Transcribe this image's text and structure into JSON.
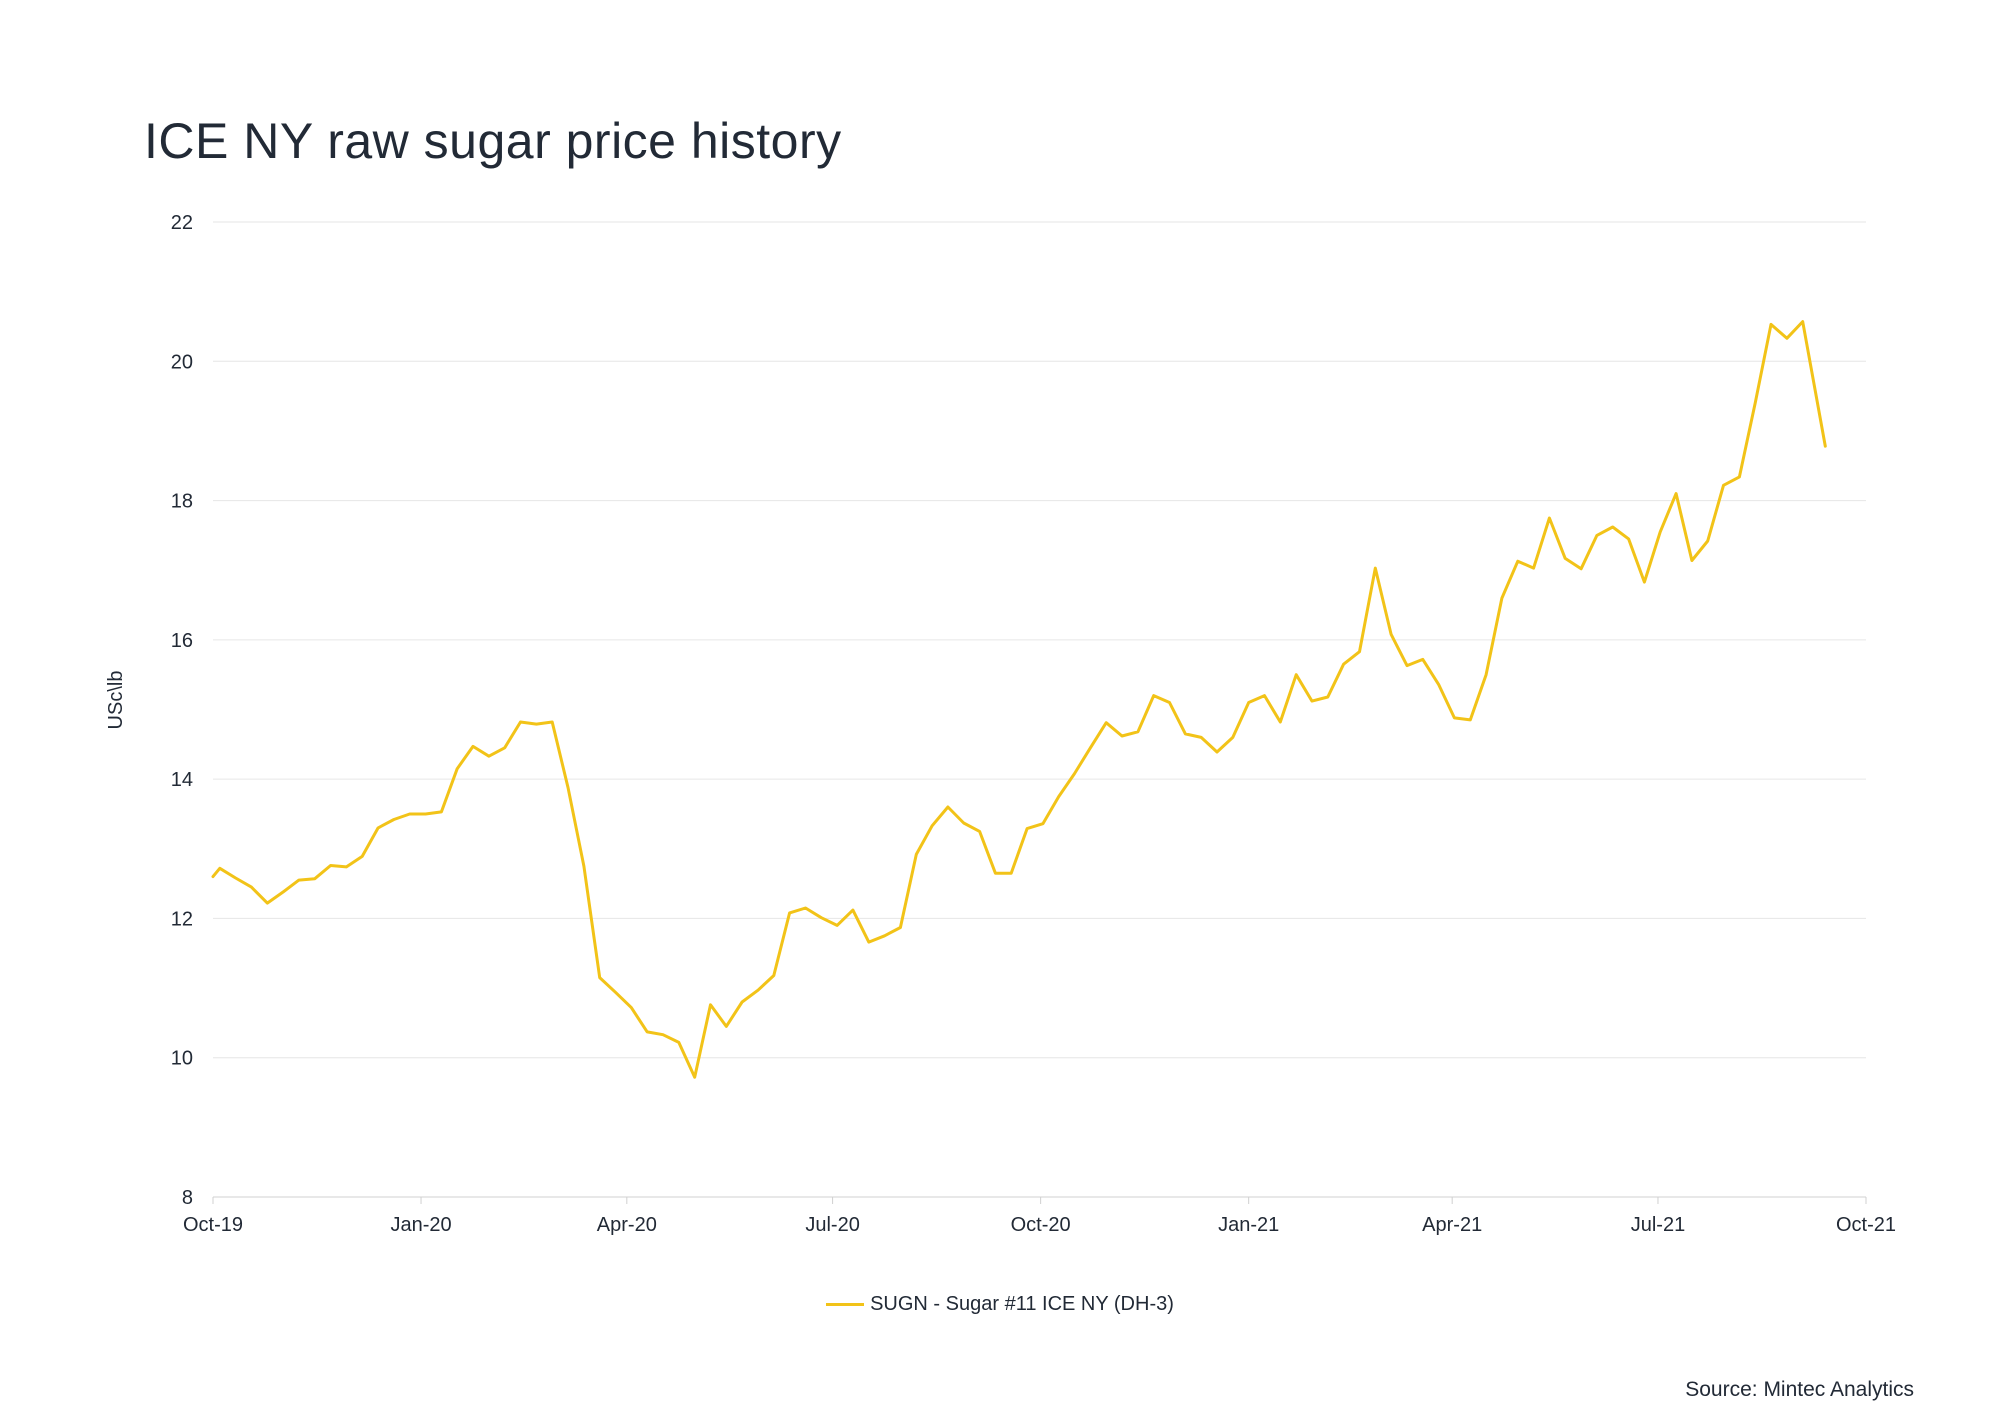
{
  "colors": {
    "series": "#f2c318",
    "grid": "#e6e6e6",
    "text": "#222a36",
    "axis": "#d0d0d0"
  },
  "source_label": "Source: Mintec Analytics",
  "chart_data": {
    "type": "line",
    "title": "ICE NY raw sugar price history",
    "xlabel": "",
    "ylabel": "USc\\lb",
    "ylim": [
      8,
      22
    ],
    "yticks": [
      8,
      10,
      12,
      14,
      16,
      18,
      20,
      22
    ],
    "xlim": [
      "2019-10-01",
      "2021-10-01"
    ],
    "xticks": [
      {
        "date": "2019-10-01",
        "label": "Oct-19"
      },
      {
        "date": "2020-01-01",
        "label": "Jan-20"
      },
      {
        "date": "2020-04-01",
        "label": "Apr-20"
      },
      {
        "date": "2020-07-01",
        "label": "Jul-20"
      },
      {
        "date": "2020-10-01",
        "label": "Oct-20"
      },
      {
        "date": "2021-01-01",
        "label": "Jan-21"
      },
      {
        "date": "2021-04-01",
        "label": "Apr-21"
      },
      {
        "date": "2021-07-01",
        "label": "Jul-21"
      },
      {
        "date": "2021-10-01",
        "label": "Oct-21"
      }
    ],
    "grid": true,
    "legend_position": "bottom-center",
    "series": [
      {
        "name": "SUGN - Sugar #11 ICE  NY (DH-3)",
        "color": "#f2c318",
        "points": [
          [
            "2019-10-01",
            12.6
          ],
          [
            "2019-10-04",
            12.72
          ],
          [
            "2019-10-11",
            12.58
          ],
          [
            "2019-10-18",
            12.45
          ],
          [
            "2019-10-25",
            12.22
          ],
          [
            "2019-11-01",
            12.38
          ],
          [
            "2019-11-08",
            12.55
          ],
          [
            "2019-11-15",
            12.57
          ],
          [
            "2019-11-22",
            12.76
          ],
          [
            "2019-11-29",
            12.74
          ],
          [
            "2019-12-06",
            12.89
          ],
          [
            "2019-12-13",
            13.3
          ],
          [
            "2019-12-20",
            13.42
          ],
          [
            "2019-12-27",
            13.5
          ],
          [
            "2020-01-03",
            13.5
          ],
          [
            "2020-01-10",
            13.53
          ],
          [
            "2020-01-17",
            14.15
          ],
          [
            "2020-01-24",
            14.47
          ],
          [
            "2020-01-31",
            14.33
          ],
          [
            "2020-02-07",
            14.45
          ],
          [
            "2020-02-14",
            14.82
          ],
          [
            "2020-02-21",
            14.79
          ],
          [
            "2020-02-28",
            14.82
          ],
          [
            "2020-03-06",
            13.88
          ],
          [
            "2020-03-13",
            12.75
          ],
          [
            "2020-03-20",
            11.15
          ],
          [
            "2020-03-27",
            10.94
          ],
          [
            "2020-04-03",
            10.72
          ],
          [
            "2020-04-10",
            10.37
          ],
          [
            "2020-04-17",
            10.33
          ],
          [
            "2020-04-24",
            10.22
          ],
          [
            "2020-05-01",
            9.72
          ],
          [
            "2020-05-08",
            10.76
          ],
          [
            "2020-05-15",
            10.45
          ],
          [
            "2020-05-22",
            10.8
          ],
          [
            "2020-05-29",
            10.97
          ],
          [
            "2020-06-05",
            11.18
          ],
          [
            "2020-06-12",
            12.08
          ],
          [
            "2020-06-19",
            12.15
          ],
          [
            "2020-06-26",
            12.01
          ],
          [
            "2020-07-03",
            11.9
          ],
          [
            "2020-07-10",
            12.12
          ],
          [
            "2020-07-17",
            11.66
          ],
          [
            "2020-07-24",
            11.75
          ],
          [
            "2020-07-31",
            11.87
          ],
          [
            "2020-08-07",
            12.92
          ],
          [
            "2020-08-14",
            13.33
          ],
          [
            "2020-08-21",
            13.6
          ],
          [
            "2020-08-28",
            13.37
          ],
          [
            "2020-09-04",
            13.25
          ],
          [
            "2020-09-11",
            12.65
          ],
          [
            "2020-09-18",
            12.65
          ],
          [
            "2020-09-25",
            13.29
          ],
          [
            "2020-10-02",
            13.36
          ],
          [
            "2020-10-09",
            13.75
          ],
          [
            "2020-10-16",
            14.08
          ],
          [
            "2020-10-23",
            14.45
          ],
          [
            "2020-10-30",
            14.81
          ],
          [
            "2020-11-06",
            14.62
          ],
          [
            "2020-11-13",
            14.68
          ],
          [
            "2020-11-20",
            15.2
          ],
          [
            "2020-11-27",
            15.1
          ],
          [
            "2020-12-04",
            14.65
          ],
          [
            "2020-12-11",
            14.6
          ],
          [
            "2020-12-18",
            14.39
          ],
          [
            "2020-12-25",
            14.6
          ],
          [
            "2021-01-01",
            15.1
          ],
          [
            "2021-01-08",
            15.2
          ],
          [
            "2021-01-15",
            14.82
          ],
          [
            "2021-01-22",
            15.5
          ],
          [
            "2021-01-29",
            15.12
          ],
          [
            "2021-02-05",
            15.18
          ],
          [
            "2021-02-12",
            15.65
          ],
          [
            "2021-02-19",
            15.83
          ],
          [
            "2021-02-26",
            17.03
          ],
          [
            "2021-03-05",
            16.08
          ],
          [
            "2021-03-12",
            15.63
          ],
          [
            "2021-03-19",
            15.72
          ],
          [
            "2021-03-26",
            15.36
          ],
          [
            "2021-04-02",
            14.88
          ],
          [
            "2021-04-09",
            14.85
          ],
          [
            "2021-04-16",
            15.5
          ],
          [
            "2021-04-23",
            16.6
          ],
          [
            "2021-04-30",
            17.13
          ],
          [
            "2021-05-07",
            17.03
          ],
          [
            "2021-05-14",
            17.75
          ],
          [
            "2021-05-21",
            17.17
          ],
          [
            "2021-05-28",
            17.02
          ],
          [
            "2021-06-04",
            17.5
          ],
          [
            "2021-06-11",
            17.62
          ],
          [
            "2021-06-18",
            17.45
          ],
          [
            "2021-06-25",
            16.83
          ],
          [
            "2021-07-02",
            17.55
          ],
          [
            "2021-07-09",
            18.1
          ],
          [
            "2021-07-16",
            17.14
          ],
          [
            "2021-07-23",
            17.42
          ],
          [
            "2021-07-30",
            18.22
          ],
          [
            "2021-08-06",
            18.34
          ],
          [
            "2021-08-13",
            19.4
          ],
          [
            "2021-08-20",
            20.53
          ],
          [
            "2021-08-27",
            20.33
          ],
          [
            "2021-09-03",
            20.57
          ],
          [
            "2021-09-13",
            18.78
          ]
        ]
      }
    ]
  }
}
